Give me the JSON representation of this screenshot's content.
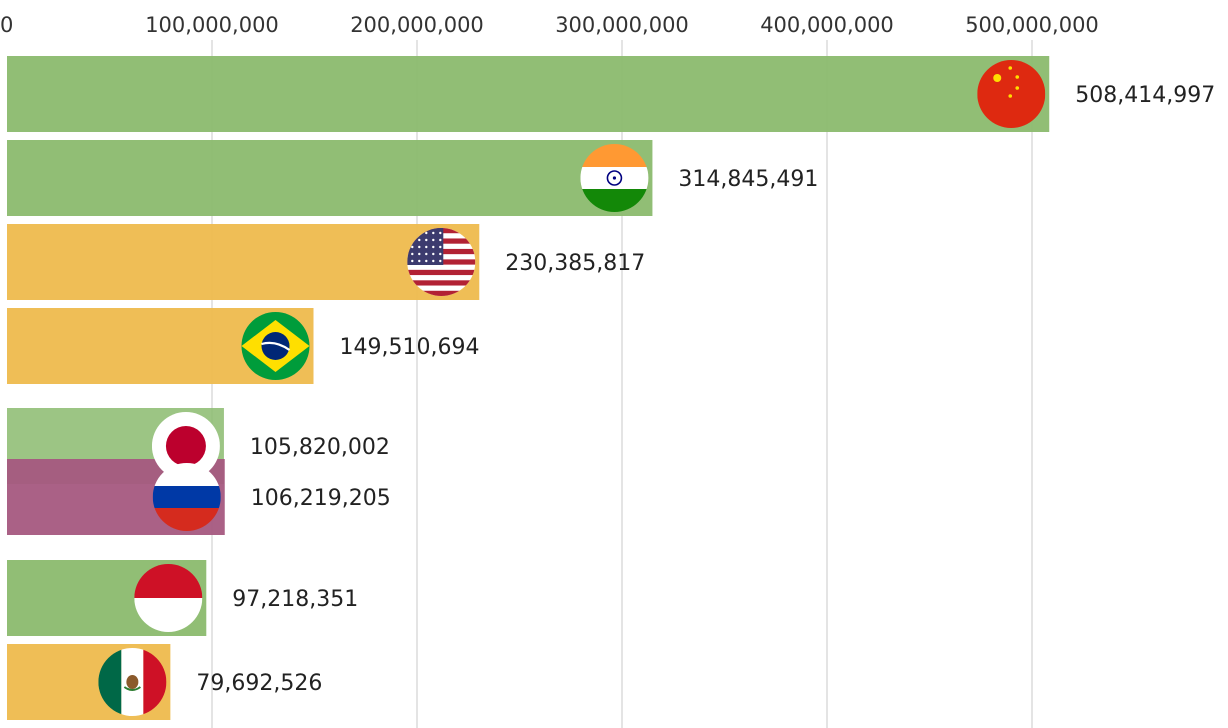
{
  "chart_data": {
    "type": "bar",
    "orientation": "horizontal",
    "title": "",
    "xlabel": "",
    "ylabel": "",
    "xlim": [
      0,
      520000000
    ],
    "ticks": [
      0,
      100000000,
      200000000,
      300000000,
      400000000,
      500000000
    ],
    "tick_labels": [
      "0",
      "100,000,000",
      "200,000,000",
      "300,000,000",
      "400,000,000",
      "500,000,000"
    ],
    "grid": true,
    "legend": "none",
    "categories": [
      "China",
      "India",
      "United States",
      "Brazil",
      "Japan",
      "Russia",
      "Indonesia",
      "Mexico"
    ],
    "values": [
      508414997,
      314845491,
      230385817,
      149510694,
      105820002,
      106219205,
      97218351,
      79692526
    ],
    "value_labels": [
      "508,414,997",
      "314,845,491",
      "230,385,817",
      "149,510,694",
      "105,820,002",
      "106,219,205",
      "97,218,351",
      "79,692,526"
    ],
    "bar_colors": [
      "#8bbb6e",
      "#8bbb6e",
      "#eebb4d",
      "#eebb4d",
      "#8bbb6e",
      "#a5597f",
      "#8bbb6e",
      "#eebb4d"
    ],
    "flag_icons": [
      "china-flag-icon",
      "india-flag-icon",
      "usa-flag-icon",
      "brazil-flag-icon",
      "japan-flag-icon",
      "russia-flag-icon",
      "indonesia-flag-icon",
      "mexico-flag-icon"
    ]
  }
}
